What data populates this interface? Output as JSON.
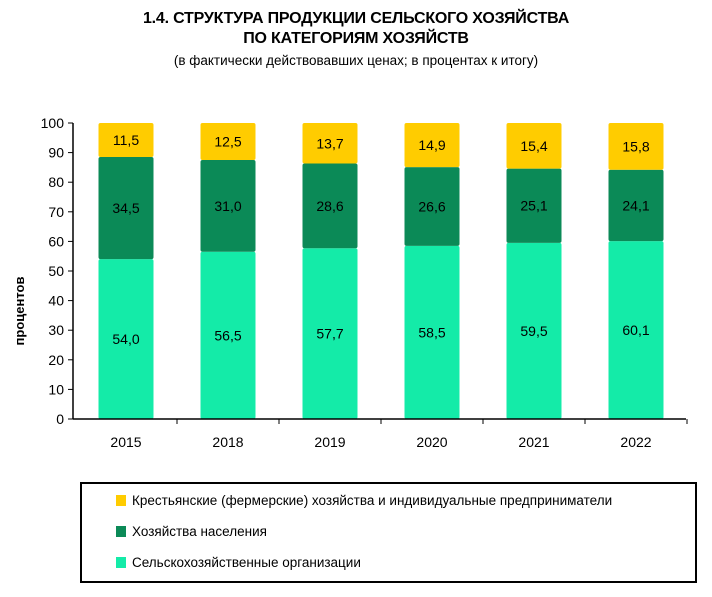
{
  "chart_data": {
    "type": "stacked-bar",
    "title_line1": "1.4. СТРУКТУРА ПРОДУКЦИИ СЕЛЬСКОГО ХОЗЯЙСТВА",
    "title_line2": "ПО КАТЕГОРИЯМ ХОЗЯЙСТВ",
    "subtitle": "(в фактически действовавших ценах; в процентах к итогу)",
    "ylabel": "процентов",
    "xlabel": "",
    "ylim": [
      0,
      100
    ],
    "yticks": [
      0,
      10,
      20,
      30,
      40,
      50,
      60,
      70,
      80,
      90,
      100
    ],
    "grid": false,
    "legend_position": "bottom",
    "categories": [
      "2015",
      "2018",
      "2019",
      "2020",
      "2021",
      "2022"
    ],
    "series": [
      {
        "name": "Сельскохозяйственные организации",
        "color": "#14EBA8",
        "values": [
          54.0,
          56.5,
          57.7,
          58.5,
          59.5,
          60.1
        ],
        "labels": [
          "54,0",
          "56,5",
          "57,7",
          "58,5",
          "59,5",
          "60,1"
        ]
      },
      {
        "name": "Хозяйства населения",
        "color": "#0B8A57",
        "values": [
          34.5,
          31.0,
          28.6,
          26.6,
          25.1,
          24.1
        ],
        "labels": [
          "34,5",
          "31,0",
          "28,6",
          "26,6",
          "25,1",
          "24,1"
        ]
      },
      {
        "name": "Крестьянские (фермерские) хозяйства и индивидуальные предприниматели",
        "color": "#FFCC00",
        "values": [
          11.5,
          12.5,
          13.7,
          14.9,
          15.4,
          15.8
        ],
        "labels": [
          "11,5",
          "12,5",
          "13,7",
          "14,9",
          "15,4",
          "15,8"
        ]
      }
    ]
  }
}
